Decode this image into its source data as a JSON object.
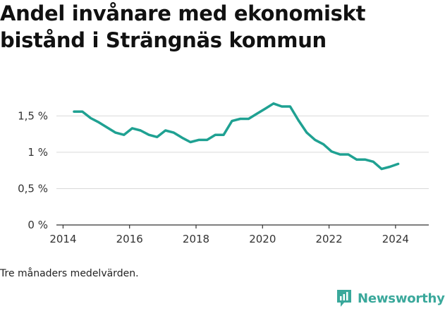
{
  "title": "Andel invånare med ekonomiskt bistånd i Strängnäs kommun",
  "caption": "Tre månaders medelvärden.",
  "brand": {
    "name": "Newsworthy",
    "icon": "newsworthy-logo-icon",
    "color": "#3aa89b"
  },
  "colors": {
    "line": "#1fa192",
    "grid": "#d9d9d9",
    "axis": "#333333"
  },
  "chart_data": {
    "type": "line",
    "title": "Andel invånare med ekonomiskt bistånd i Strängnäs kommun",
    "xlabel": "",
    "ylabel": "",
    "xlim": [
      2013.8,
      2025.0
    ],
    "ylim": [
      0,
      1.75
    ],
    "x_ticks": [
      2014,
      2016,
      2018,
      2020,
      2022,
      2024
    ],
    "x_tick_labels": [
      "2014",
      "2016",
      "2018",
      "2020",
      "2022",
      "2024"
    ],
    "y_ticks": [
      0,
      0.5,
      1,
      1.5
    ],
    "y_tick_labels": [
      "0 %",
      "0,5 %",
      "1 %",
      "1,5 %"
    ],
    "grid": true,
    "legend": "none",
    "series": [
      {
        "color": "#1fa192",
        "x": [
          2014.33,
          2014.58,
          2014.83,
          2015.08,
          2015.33,
          2015.58,
          2015.83,
          2016.08,
          2016.33,
          2016.58,
          2016.83,
          2017.08,
          2017.33,
          2017.58,
          2017.83,
          2018.08,
          2018.33,
          2018.58,
          2018.83,
          2019.08,
          2019.33,
          2019.58,
          2019.83,
          2020.08,
          2020.33,
          2020.58,
          2020.83,
          2021.08,
          2021.33,
          2021.58,
          2021.83,
          2022.08,
          2022.33,
          2022.58,
          2022.83,
          2023.08,
          2023.33,
          2023.58,
          2023.83,
          2024.08
        ],
        "y": [
          1.56,
          1.56,
          1.47,
          1.41,
          1.34,
          1.27,
          1.24,
          1.33,
          1.3,
          1.24,
          1.21,
          1.3,
          1.27,
          1.2,
          1.14,
          1.17,
          1.17,
          1.24,
          1.24,
          1.43,
          1.46,
          1.46,
          1.53,
          1.6,
          1.67,
          1.63,
          1.63,
          1.44,
          1.27,
          1.17,
          1.11,
          1.01,
          0.97,
          0.97,
          0.9,
          0.9,
          0.87,
          0.77,
          0.8,
          0.84
        ]
      }
    ]
  }
}
